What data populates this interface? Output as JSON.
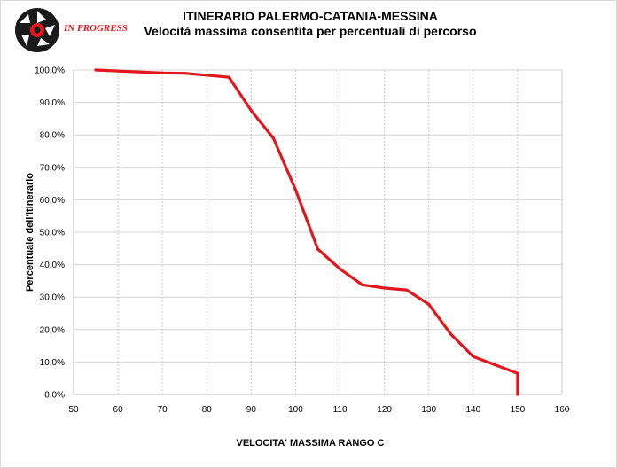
{
  "header": {
    "logo_text": "IN PROGRESS",
    "title": "ITINERARIO PALERMO-CATANIA-MESSINA",
    "subtitle": "Velocità massima consentita per percentuali di percorso"
  },
  "colors": {
    "line": "#e3161b",
    "grid": "#d4d4d4",
    "vgrid": "#c8c8c8"
  },
  "chart_data": {
    "type": "line",
    "title": "ITINERARIO PALERMO-CATANIA-MESSINA",
    "subtitle": "Velocità massima consentita per percentuali di percorso",
    "xlabel": "VELOCITA' MASSIMA RANGO C",
    "ylabel": "Percentuale dell'itinerario",
    "xlim": [
      50,
      160
    ],
    "ylim": [
      0,
      100
    ],
    "x_ticks": [
      50,
      60,
      70,
      80,
      90,
      100,
      110,
      120,
      130,
      140,
      150,
      160
    ],
    "x_tick_labels": [
      "50",
      "60",
      "70",
      "80",
      "90",
      "100",
      "110",
      "120",
      "130",
      "140",
      "150",
      "160"
    ],
    "y_ticks": [
      0,
      10,
      20,
      30,
      40,
      50,
      60,
      70,
      80,
      90,
      100
    ],
    "y_tick_labels": [
      "0,0%",
      "10,0%",
      "20,0%",
      "30,0%",
      "40,0%",
      "50,0%",
      "60,0%",
      "70,0%",
      "80,0%",
      "90,0%",
      "100,0%"
    ],
    "grid": true,
    "legend": "none",
    "series": [
      {
        "x": [
          55,
          60,
          70,
          75,
          85,
          90,
          95,
          100,
          105,
          110,
          115,
          120,
          125,
          130,
          135,
          140,
          150,
          150
        ],
        "y": [
          100,
          99.7,
          99.1,
          99.0,
          97.8,
          87.5,
          79.0,
          63.0,
          44.8,
          38.7,
          33.8,
          32.8,
          32.2,
          27.8,
          18.5,
          11.7,
          6.5,
          0
        ]
      }
    ]
  }
}
